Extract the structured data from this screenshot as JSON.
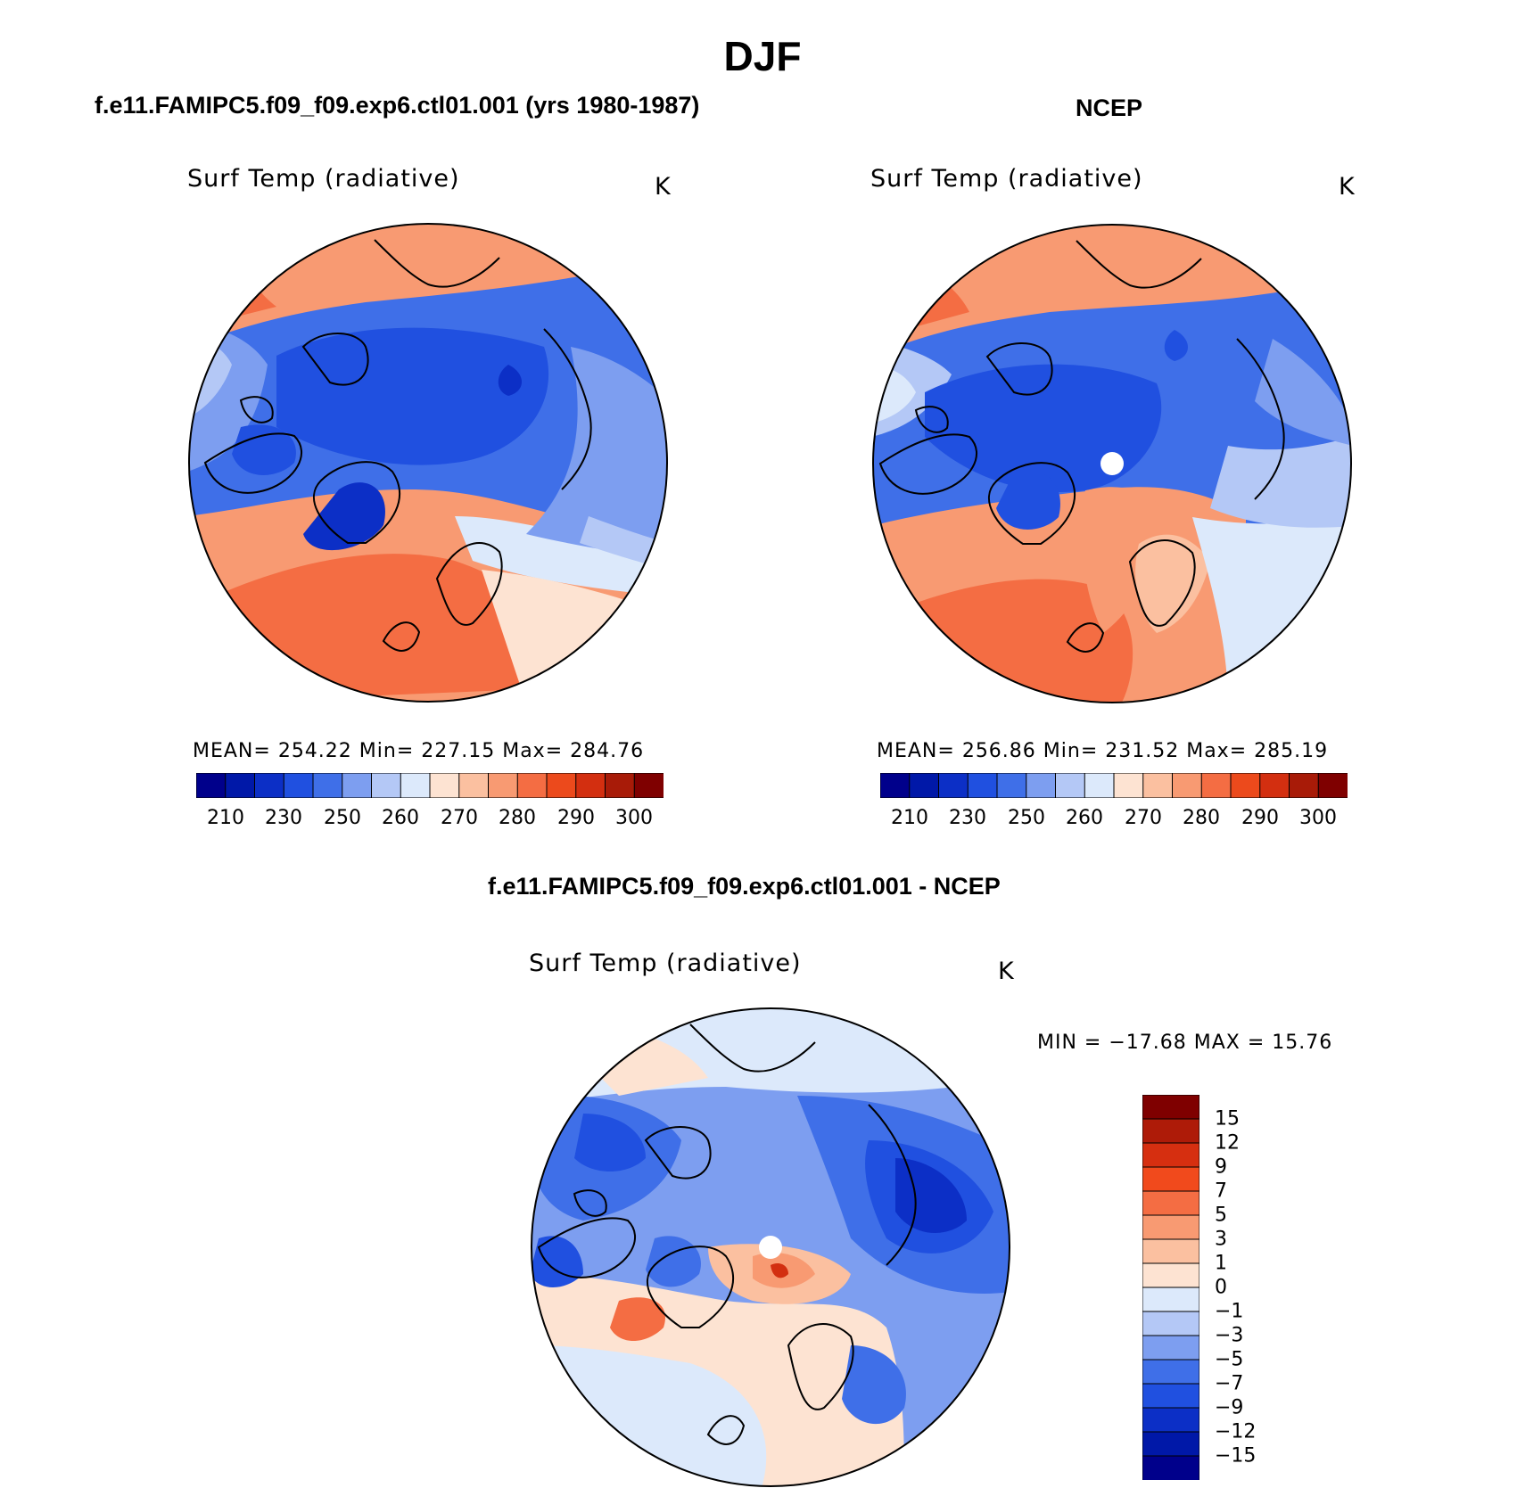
{
  "main_title": "DJF",
  "panels": [
    {
      "title": "f.e11.FAMIPC5.f09_f09.exp6.ctl01.001 (yrs 1980-1987)",
      "label": "Surf Temp (radiative)",
      "units": "K",
      "stats": "MEAN= 254.22   Min= 227.15   Max= 284.76",
      "colorbar_ticks": [
        "210",
        "230",
        "250",
        "260",
        "270",
        "280",
        "290",
        "300"
      ]
    },
    {
      "title": "NCEP",
      "label": "Surf Temp (radiative)",
      "units": "K",
      "stats": "MEAN= 256.86   Min= 231.52   Max= 285.19",
      "colorbar_ticks": [
        "210",
        "230",
        "250",
        "260",
        "270",
        "280",
        "290",
        "300"
      ]
    },
    {
      "title": "f.e11.FAMIPC5.f09_f09.exp6.ctl01.001 - NCEP",
      "label": "Surf Temp (radiative)",
      "units": "K",
      "stats": "MIN = −17.68 MAX =  15.76",
      "colorbar_ticks": [
        "15",
        "12",
        "9",
        "7",
        "5",
        "3",
        "1",
        "0",
        "−1",
        "−3",
        "−5",
        "−7",
        "−9",
        "−12",
        "−15"
      ]
    }
  ],
  "colors": {
    "abs_scale": [
      "#00008b",
      "#0018a8",
      "#0c2fc6",
      "#2050e0",
      "#3f6fe8",
      "#7d9ef0",
      "#b4c8f6",
      "#dce9fb",
      "#fde3d2",
      "#fbc0a0",
      "#f89a72",
      "#f46d43",
      "#ec4a1c",
      "#d32f10",
      "#a81b08",
      "#7f0000"
    ],
    "diff_scale": [
      "#7f0000",
      "#ae1b08",
      "#d62f10",
      "#f14a1c",
      "#f46d43",
      "#f89a72",
      "#fbc0a0",
      "#fde3d2",
      "#dce9fb",
      "#b4c8f6",
      "#7d9ef0",
      "#3f6fe8",
      "#2050e0",
      "#0c2fc6",
      "#0018a8",
      "#00008b"
    ]
  }
}
